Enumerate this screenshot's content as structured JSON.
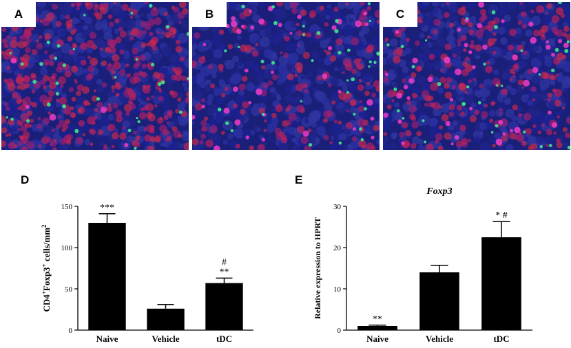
{
  "panels": [
    {
      "letter": "A"
    },
    {
      "letter": "B"
    },
    {
      "letter": "C"
    }
  ],
  "chart_data": [
    {
      "type": "bar",
      "panel_letter": "D",
      "title": "",
      "ylabel_parts": [
        "CD4",
        "+",
        "Foxp3",
        "+",
        " cells/mm",
        "2"
      ],
      "categories": [
        "Naive",
        "Vehicle",
        "tDC"
      ],
      "values": [
        130,
        26,
        57
      ],
      "errors": [
        11,
        5,
        6
      ],
      "annotations": [
        [
          "***"
        ],
        [],
        [
          "#",
          "**"
        ]
      ],
      "ylim": [
        0,
        150
      ],
      "yticks": [
        "0",
        "50",
        "100",
        "150"
      ],
      "bar_color": "#000000"
    },
    {
      "type": "bar",
      "panel_letter": "E",
      "title": "Foxp3",
      "ylabel": "Relative expression to HPRT",
      "categories": [
        "Naive",
        "Vehicle",
        "tDC"
      ],
      "values": [
        1,
        14,
        22.5
      ],
      "errors": [
        0.2,
        1.7,
        3.8
      ],
      "annotations": [
        [
          "**"
        ],
        [],
        [
          "* #"
        ]
      ],
      "ylim": [
        0,
        30
      ],
      "yticks": [
        "0",
        "10",
        "20",
        "30"
      ],
      "bar_color": "#000000"
    }
  ]
}
